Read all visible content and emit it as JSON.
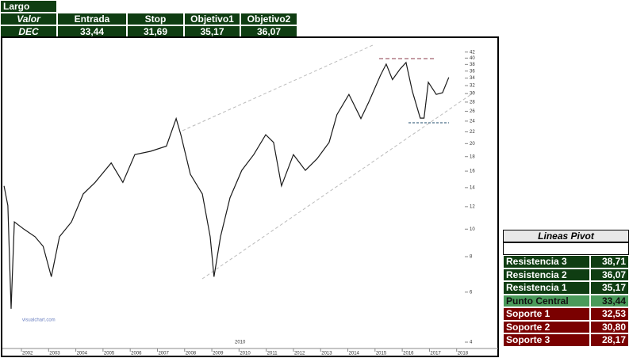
{
  "header": {
    "title": "Largo",
    "columns": [
      "Valor",
      "Entrada",
      "Stop",
      "Objetivo1",
      "Objetivo2"
    ],
    "row": [
      "DEC",
      "33,44",
      "31,69",
      "35,17",
      "36,07"
    ]
  },
  "pivot": {
    "title": "Lineas Pivot",
    "rows": [
      [
        "Resistencia 3",
        "38,71"
      ],
      [
        "Resistencia 2",
        "36,07"
      ],
      [
        "Resistencia 1",
        "35,17"
      ],
      [
        "Punto Central",
        "33,44"
      ],
      [
        "Soporte 1",
        "32,53"
      ],
      [
        "Soporte 2",
        "30,80"
      ],
      [
        "Soporte 3",
        "28,17"
      ]
    ]
  },
  "chart_data": {
    "type": "line",
    "color": "#1a1a1a",
    "log_y": true,
    "x": [
      2001.36,
      2001.5,
      2001.62,
      2001.74,
      2002.09,
      2002.5,
      2002.8,
      2003.1,
      2003.4,
      2003.84,
      2004.27,
      2004.71,
      2005.3,
      2005.73,
      2006.17,
      2006.75,
      2007.33,
      2007.69,
      2007.86,
      2008.21,
      2008.65,
      2008.94,
      2009.08,
      2009.32,
      2009.67,
      2010.1,
      2010.54,
      2010.98,
      2011.27,
      2011.56,
      2012.0,
      2012.44,
      2012.87,
      2013.31,
      2013.6,
      2014.04,
      2014.48,
      2014.77,
      2015.2,
      2015.41,
      2015.64,
      2015.93,
      2016.14,
      2016.37,
      2016.66,
      2016.8,
      2016.96,
      2017.25,
      2017.48,
      2017.71
    ],
    "values": [
      14.2,
      12.1,
      5.24,
      10.6,
      10,
      9.4,
      8.7,
      6.8,
      9.4,
      10.6,
      13.3,
      14.6,
      17.1,
      14.6,
      18.3,
      18.8,
      19.6,
      24.5,
      21.5,
      15.6,
      13.3,
      9.4,
      6.8,
      9.4,
      12.9,
      16.1,
      18.3,
      21.5,
      20.2,
      14.2,
      18.3,
      16.1,
      17.7,
      20.2,
      25.3,
      29.8,
      24.5,
      28,
      34.8,
      38.1,
      33.6,
      36.7,
      38.6,
      30.6,
      24.6,
      24.6,
      32.9,
      29.8,
      30.2,
      34.2
    ],
    "xlim": [
      2001.3,
      2018.3
    ],
    "xticks": [
      2002,
      2003,
      2004,
      2005,
      2006,
      2007,
      2008,
      2009,
      2010,
      2011,
      2012,
      2013,
      2014,
      2015,
      2016,
      2017,
      2018
    ],
    "ylim": [
      3.8,
      45
    ],
    "yticks": [
      4,
      6,
      8,
      10,
      12,
      14,
      16,
      18,
      20,
      22,
      24,
      26,
      28,
      30,
      32,
      34,
      36,
      38,
      40,
      42
    ],
    "annotations": [
      "visualchart.com",
      "2010"
    ]
  }
}
